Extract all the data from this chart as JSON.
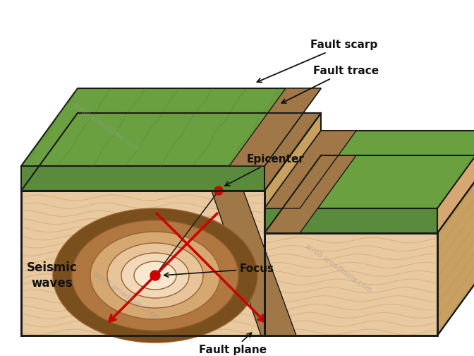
{
  "background_color": "#ffffff",
  "labels": {
    "fault_scarp": "Fault scarp",
    "fault_trace": "Fault trace",
    "epicenter": "Epicenter",
    "focus": "Focus",
    "seismic_waves": "Seismic\nwaves",
    "fault_plane": "Fault plane"
  },
  "colors": {
    "ground_body": "#e8c9a0",
    "ground_body_dark": "#d4a870",
    "ground_top_green": "#5a8a3c",
    "fault_brown": "#a07848",
    "fault_brown2": "#8b6530",
    "seismic_rings": [
      "#7a4f1e",
      "#b07840",
      "#d4a870",
      "#e8c49a",
      "#f0d8b8",
      "#f8e8d0"
    ],
    "focus_dot": "#cc0000",
    "epicenter_dot": "#cc0000",
    "arrow_red": "#cc0000",
    "label_black": "#111111",
    "outline": "#1a1a1a",
    "right_face": "#c8a060",
    "bottom_face": "#c0966050"
  },
  "watermark": "scroll.aroadtome.com"
}
